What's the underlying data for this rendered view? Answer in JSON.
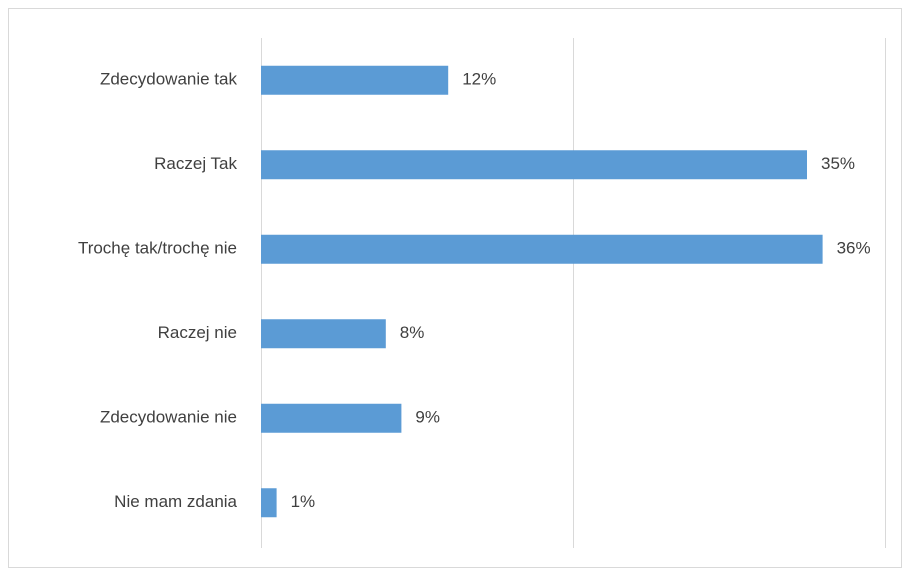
{
  "chart_data": {
    "type": "bar",
    "orientation": "horizontal",
    "categories": [
      "Zdecydowanie tak",
      "Raczej Tak",
      "Trochę tak/trochę nie",
      "Raczej nie",
      "Zdecydowanie nie",
      "Nie mam zdania"
    ],
    "values": [
      12,
      35,
      36,
      8,
      9,
      1
    ],
    "value_labels": [
      "12%",
      "35%",
      "36%",
      "8%",
      "9%",
      "1%"
    ],
    "xlim": [
      0,
      40
    ],
    "grid": true,
    "bar_color": "#5b9bd5",
    "gridline_color": "#d9d9d9",
    "text_color": "#404040"
  }
}
